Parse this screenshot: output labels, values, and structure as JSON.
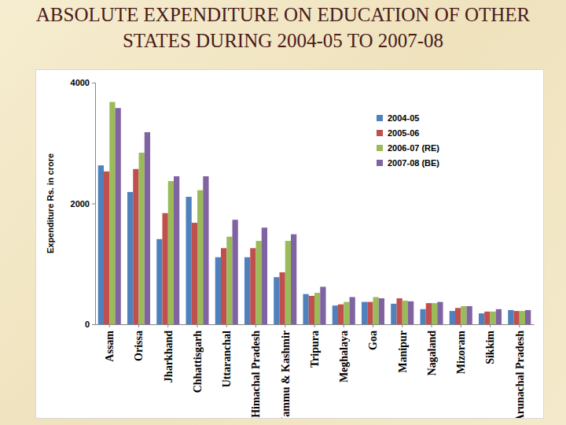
{
  "chart_data": {
    "type": "bar",
    "title": "ABSOLUTE EXPENDITURE ON EDUCATION OF OTHER STATES DURING 2004-05 TO 2007-08",
    "y_label": "Expenditure Rs. in crore",
    "categories": [
      "Assam",
      "Orissa",
      "Jharkhand",
      "Chhattisgarh",
      "Uttaranchal",
      "Himachal Pradesh",
      "Jammu & Kashmir",
      "Tripura",
      "Meghalaya",
      "Goa",
      "Manipur",
      "Nagaland",
      "Mizoram",
      "Sikkim",
      "Arunachal Pradesh"
    ],
    "series": [
      {
        "name": "2004-05",
        "color": "#4f81bd",
        "values": [
          2630,
          2190,
          1410,
          2110,
          1110,
          1110,
          780,
          500,
          310,
          370,
          340,
          250,
          220,
          180,
          235
        ]
      },
      {
        "name": "2005-06",
        "color": "#c0504d",
        "values": [
          2530,
          2570,
          1840,
          1680,
          1260,
          1260,
          860,
          470,
          330,
          370,
          430,
          350,
          270,
          210,
          220
        ]
      },
      {
        "name": "2006-07 (RE)",
        "color": "#9bbb59",
        "values": [
          3680,
          2840,
          2370,
          2220,
          1450,
          1380,
          1380,
          520,
          370,
          450,
          390,
          350,
          300,
          210,
          220
        ]
      },
      {
        "name": "2007-08  (BE)",
        "color": "#8064a2",
        "values": [
          3580,
          3180,
          2450,
          2450,
          1730,
          1600,
          1490,
          620,
          450,
          430,
          380,
          370,
          300,
          250,
          235
        ]
      }
    ],
    "ylim": [
      0,
      4000
    ],
    "yticks": [
      0,
      2000,
      4000
    ],
    "grid": false,
    "legend": "upper right"
  }
}
